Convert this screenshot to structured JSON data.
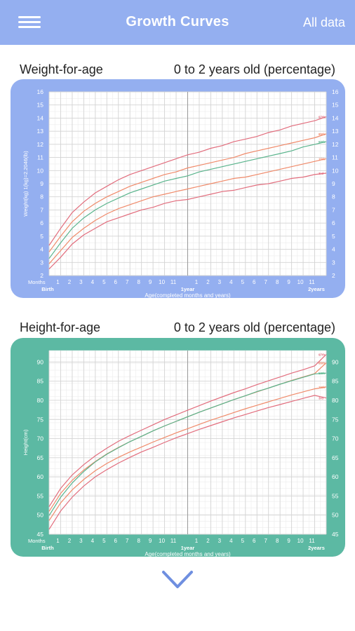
{
  "header": {
    "title": "Growth Curves",
    "all_data_label": "All data",
    "menu_icon": "hamburger-menu-icon",
    "color": "#94aff0"
  },
  "weight": {
    "title": "Weight-for-age",
    "subtitle": "0 to 2 years old (percentage)"
  },
  "height": {
    "title": "Height-for-age",
    "subtitle": "0 to 2 years old (percentage)"
  },
  "footer": {
    "expand_icon": "chevron-down-icon",
    "color": "#6f8fe0"
  },
  "chart_data": [
    {
      "type": "line",
      "frame_color": "#94aff0",
      "ylabel": "Weight(kg) 1(kg)=2.2046(lb)",
      "xlabel": "Age(completed months and years)",
      "x_unit_label": "Months",
      "ylim": [
        2,
        16
      ],
      "xlim": [
        0,
        24
      ],
      "ytick_labels": [
        "2",
        "3",
        "4",
        "5",
        "6",
        "7",
        "8",
        "9",
        "10",
        "11",
        "12",
        "13",
        "14",
        "15",
        "16"
      ],
      "xtick_labels": [
        "1",
        "2",
        "3",
        "4",
        "5",
        "6",
        "7",
        "8",
        "9",
        "10",
        "11",
        "",
        "1",
        "2",
        "3",
        "4",
        "5",
        "6",
        "7",
        "8",
        "9",
        "10",
        "11"
      ],
      "x_bottom_labels": {
        "birth": "Birth",
        "year1": "1year",
        "year2": "2years"
      },
      "x": [
        0,
        1,
        2,
        3,
        4,
        5,
        6,
        7,
        8,
        9,
        10,
        11,
        12,
        13,
        14,
        15,
        16,
        17,
        18,
        19,
        20,
        21,
        22,
        23,
        24
      ],
      "series": [
        {
          "name": "97th",
          "color": "#e26d7d",
          "values": [
            4.3,
            5.6,
            6.8,
            7.6,
            8.3,
            8.8,
            9.3,
            9.7,
            10.0,
            10.3,
            10.6,
            10.9,
            11.2,
            11.4,
            11.7,
            11.9,
            12.2,
            12.4,
            12.6,
            12.9,
            13.1,
            13.4,
            13.6,
            13.8,
            14.1
          ]
        },
        {
          "name": "85th",
          "color": "#f08a6a",
          "values": [
            3.8,
            5.0,
            6.1,
            6.9,
            7.5,
            8.0,
            8.4,
            8.8,
            9.1,
            9.4,
            9.7,
            9.9,
            10.2,
            10.4,
            10.6,
            10.8,
            11.0,
            11.3,
            11.5,
            11.7,
            11.9,
            12.1,
            12.3,
            12.5,
            12.8
          ]
        },
        {
          "name": "50th",
          "color": "#59b48c",
          "values": [
            3.3,
            4.5,
            5.6,
            6.4,
            7.0,
            7.5,
            7.9,
            8.3,
            8.6,
            8.9,
            9.2,
            9.4,
            9.6,
            9.9,
            10.1,
            10.3,
            10.5,
            10.7,
            10.9,
            11.1,
            11.3,
            11.5,
            11.8,
            12.0,
            12.2
          ]
        },
        {
          "name": "15th",
          "color": "#f08a6a",
          "values": [
            2.9,
            3.9,
            4.9,
            5.6,
            6.2,
            6.7,
            7.1,
            7.4,
            7.7,
            8.0,
            8.2,
            8.4,
            8.6,
            8.8,
            9.0,
            9.2,
            9.4,
            9.5,
            9.7,
            9.9,
            10.1,
            10.3,
            10.5,
            10.7,
            10.9
          ]
        },
        {
          "name": "3rd",
          "color": "#e26d7d",
          "values": [
            2.5,
            3.4,
            4.4,
            5.1,
            5.6,
            6.1,
            6.4,
            6.7,
            7.0,
            7.2,
            7.5,
            7.7,
            7.8,
            8.0,
            8.2,
            8.4,
            8.5,
            8.7,
            8.9,
            9.0,
            9.2,
            9.4,
            9.5,
            9.7,
            9.8
          ]
        }
      ]
    },
    {
      "type": "line",
      "frame_color": "#5cb9a3",
      "ylabel": "Height(cm)",
      "xlabel": "Age(completed months and years)",
      "x_unit_label": "Months",
      "ylim": [
        45,
        93
      ],
      "xlim": [
        0,
        24
      ],
      "ytick_labels": [
        "45",
        "50",
        "55",
        "60",
        "65",
        "70",
        "75",
        "80",
        "85",
        "90"
      ],
      "ytick_values": [
        45,
        50,
        55,
        60,
        65,
        70,
        75,
        80,
        85,
        90
      ],
      "xtick_labels": [
        "1",
        "2",
        "3",
        "4",
        "5",
        "6",
        "7",
        "8",
        "9",
        "10",
        "11",
        "",
        "1",
        "2",
        "3",
        "4",
        "5",
        "6",
        "7",
        "8",
        "9",
        "10",
        "11"
      ],
      "x_bottom_labels": {
        "birth": "Birth",
        "year1": "1year",
        "year2": "2years"
      },
      "x": [
        0,
        1,
        2,
        3,
        4,
        5,
        6,
        7,
        8,
        9,
        10,
        11,
        12,
        13,
        14,
        15,
        16,
        17,
        18,
        19,
        20,
        21,
        22,
        23,
        24
      ],
      "series": [
        {
          "name": "97th",
          "color": "#e26d7d",
          "values": [
            52.2,
            57.0,
            60.5,
            63.2,
            65.5,
            67.5,
            69.3,
            70.8,
            72.2,
            73.6,
            75.0,
            76.2,
            77.4,
            78.6,
            79.8,
            80.9,
            82.0,
            83.0,
            84.1,
            85.1,
            86.1,
            87.1,
            88.0,
            89.0,
            92.0
          ]
        },
        {
          "name": "85th",
          "color": "#f08a6a",
          "values": [
            51.0,
            55.7,
            59.1,
            61.8,
            64.0,
            66.0,
            67.7,
            69.2,
            70.6,
            72.0,
            73.3,
            74.5,
            75.7,
            76.9,
            78.0,
            79.1,
            80.2,
            81.2,
            82.2,
            83.2,
            84.2,
            85.2,
            86.1,
            87.0,
            89.8
          ]
        },
        {
          "name": "50th",
          "color": "#59b48c",
          "values": [
            49.9,
            54.7,
            58.4,
            61.4,
            63.9,
            65.9,
            67.6,
            69.2,
            70.6,
            72.0,
            73.3,
            74.5,
            75.7,
            76.9,
            78.0,
            79.1,
            80.2,
            81.2,
            82.3,
            83.2,
            84.2,
            85.1,
            86.0,
            86.9,
            87.1
          ]
        },
        {
          "name": "15th",
          "color": "#f08a6a",
          "values": [
            48.6,
            53.2,
            56.6,
            59.3,
            61.6,
            63.5,
            65.1,
            66.5,
            67.8,
            69.1,
            70.3,
            71.5,
            72.6,
            73.7,
            74.8,
            75.8,
            76.8,
            77.8,
            78.7,
            79.6,
            80.5,
            81.4,
            82.2,
            83.0,
            83.5
          ]
        },
        {
          "name": "3rd",
          "color": "#e26d7d",
          "values": [
            46.3,
            51.1,
            54.7,
            57.6,
            60.0,
            61.9,
            63.6,
            65.1,
            66.5,
            67.7,
            69.0,
            70.2,
            71.3,
            72.4,
            73.4,
            74.4,
            75.4,
            76.3,
            77.2,
            78.1,
            78.9,
            79.7,
            80.5,
            81.3,
            80.6
          ]
        }
      ]
    }
  ]
}
